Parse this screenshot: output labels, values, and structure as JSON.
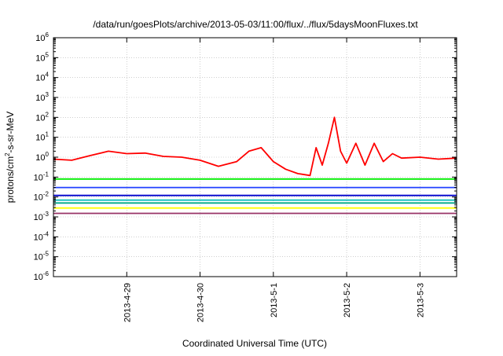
{
  "chart_data": {
    "type": "line",
    "title": "/data/run/goesPlots/archive/2013-05-03/11:00/flux/../flux/5daysMoonFluxes.txt",
    "xlabel": "Coordinated Universal Time (UTC)",
    "ylabel_parts": {
      "pre": "protons/cm",
      "sup": "2",
      "post": "-s-sr-MeV"
    },
    "y_scale": "log",
    "ylim": [
      1e-06,
      1000000.0
    ],
    "y_ticks": [
      {
        "value": 1e-06,
        "base": "10",
        "exp": "-6"
      },
      {
        "value": 1e-05,
        "base": "10",
        "exp": "-5"
      },
      {
        "value": 0.0001,
        "base": "10",
        "exp": "-4"
      },
      {
        "value": 0.001,
        "base": "10",
        "exp": "-3"
      },
      {
        "value": 0.01,
        "base": "10",
        "exp": "-2"
      },
      {
        "value": 0.1,
        "base": "10",
        "exp": "-1"
      },
      {
        "value": 1.0,
        "base": "10",
        "exp": "0"
      },
      {
        "value": 10.0,
        "base": "10",
        "exp": "1"
      },
      {
        "value": 100.0,
        "base": "10",
        "exp": "2"
      },
      {
        "value": 1000.0,
        "base": "10",
        "exp": "3"
      },
      {
        "value": 10000.0,
        "base": "10",
        "exp": "4"
      },
      {
        "value": 100000.0,
        "base": "10",
        "exp": "5"
      },
      {
        "value": 1000000.0,
        "base": "10",
        "exp": "6"
      }
    ],
    "x_unit": "day",
    "xlim": [
      "2013-04-28T00:00",
      "2013-05-03T12:00"
    ],
    "x_ticks": [
      {
        "value": "2013-04-29T00:00",
        "label": "2013-4-29"
      },
      {
        "value": "2013-04-30T00:00",
        "label": "2013-4-30"
      },
      {
        "value": "2013-05-01T00:00",
        "label": "2013-5-1"
      },
      {
        "value": "2013-05-02T00:00",
        "label": "2013-5-2"
      },
      {
        "value": "2013-05-03T00:00",
        "label": "2013-5-3"
      }
    ],
    "grid": true,
    "series": [
      {
        "color": "#ff0000",
        "x": [
          "2013-04-28T00:00",
          "2013-04-28T06:00",
          "2013-04-28T12:00",
          "2013-04-28T18:00",
          "2013-04-29T00:00",
          "2013-04-29T06:00",
          "2013-04-29T12:00",
          "2013-04-29T18:00",
          "2013-04-30T00:00",
          "2013-04-30T06:00",
          "2013-04-30T12:00",
          "2013-04-30T16:00",
          "2013-04-30T20:00",
          "2013-05-01T00:00",
          "2013-05-01T04:00",
          "2013-05-01T08:00",
          "2013-05-01T12:00",
          "2013-05-01T14:00",
          "2013-05-01T16:00",
          "2013-05-01T18:00",
          "2013-05-01T20:00",
          "2013-05-01T22:00",
          "2013-05-02T00:00",
          "2013-05-02T03:00",
          "2013-05-02T06:00",
          "2013-05-02T09:00",
          "2013-05-02T12:00",
          "2013-05-02T15:00",
          "2013-05-02T18:00",
          "2013-05-03T00:00",
          "2013-05-03T06:00",
          "2013-05-03T12:00"
        ],
        "values": [
          0.8,
          0.7,
          1.2,
          2.0,
          1.5,
          1.6,
          1.1,
          1.0,
          0.7,
          0.35,
          0.6,
          2.0,
          3.0,
          0.6,
          0.25,
          0.15,
          0.12,
          3.0,
          0.4,
          5.0,
          100,
          2.0,
          0.5,
          5.0,
          0.4,
          5.0,
          0.6,
          1.5,
          0.9,
          1.0,
          0.8,
          0.9
        ]
      },
      {
        "color": "#00ee00",
        "x": [
          "2013-04-28T00:00",
          "2013-05-03T12:00"
        ],
        "values": [
          0.08,
          0.08
        ]
      },
      {
        "color": "#2040ff",
        "x": [
          "2013-04-28T00:00",
          "2013-05-03T12:00"
        ],
        "values": [
          0.03,
          0.03
        ]
      },
      {
        "color": "#0000cc",
        "x": [
          "2013-04-28T00:00",
          "2013-05-03T12:00"
        ],
        "values": [
          0.012,
          0.012
        ]
      },
      {
        "color": "#00bbbb",
        "x": [
          "2013-04-28T00:00",
          "2013-05-03T12:00"
        ],
        "values": [
          0.007,
          0.007
        ]
      },
      {
        "color": "#00aa88",
        "x": [
          "2013-04-28T00:00",
          "2013-05-03T12:00"
        ],
        "values": [
          0.005,
          0.005
        ]
      },
      {
        "color": "#ffff00",
        "x": [
          "2013-04-28T00:00",
          "2013-05-03T12:00"
        ],
        "values": [
          0.0028,
          0.0028
        ]
      },
      {
        "color": "#993366",
        "x": [
          "2013-04-28T00:00",
          "2013-05-03T12:00"
        ],
        "values": [
          0.0015,
          0.0015
        ]
      }
    ]
  }
}
